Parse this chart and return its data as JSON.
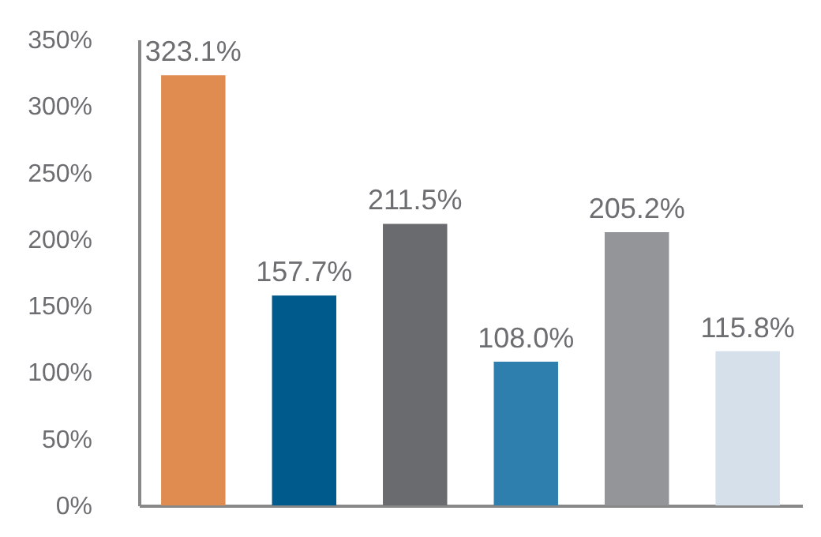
{
  "chart_data": {
    "type": "bar",
    "categories": [
      null,
      null,
      null,
      null,
      null,
      null
    ],
    "values": [
      323.1,
      157.7,
      211.5,
      108.0,
      205.2,
      115.8
    ],
    "colors": [
      "#e08c50",
      "#005a8c",
      "#696b6e",
      "#2e7fae",
      "#939598",
      "#d5e0ea"
    ],
    "value_labels": [
      "323.1%",
      "157.7%",
      "211.5%",
      "108.0%",
      "205.2%",
      "115.8%"
    ],
    "ylim": [
      0,
      350
    ],
    "yticks": [
      {
        "value": 0,
        "label": "0%"
      },
      {
        "value": 50,
        "label": "50%"
      },
      {
        "value": 100,
        "label": "100%"
      },
      {
        "value": 150,
        "label": "150%"
      },
      {
        "value": 200,
        "label": "200%"
      },
      {
        "value": 250,
        "label": "250%"
      },
      {
        "value": 300,
        "label": "300%"
      },
      {
        "value": 350,
        "label": "350%"
      }
    ],
    "legend": false
  }
}
